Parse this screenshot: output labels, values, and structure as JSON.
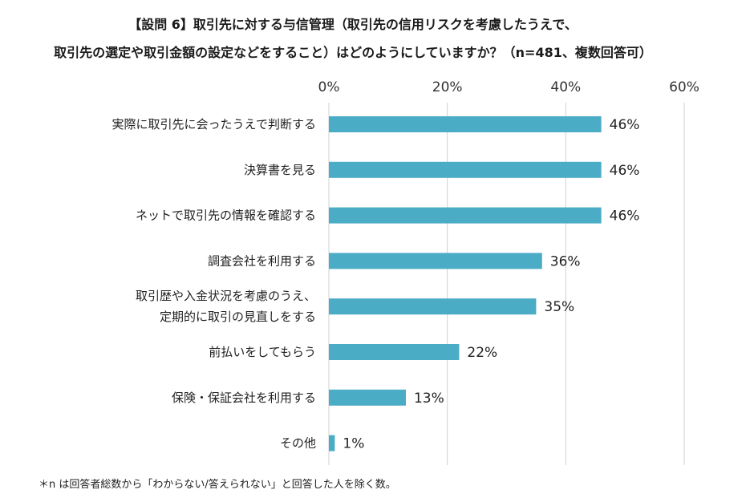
{
  "chart_data": {
    "type": "bar",
    "orientation": "horizontal",
    "title_lines": [
      "【設問 6】取引先に対する与信管理（取引先の信用リスクを考慮したうえで、",
      "取引先の選定や取引金額の設定などをすること）はどのようにしていますか？（n=481、複数回答可）"
    ],
    "categories": [
      [
        "実際に取引先に会ったうえで判断する"
      ],
      [
        "決算書を見る"
      ],
      [
        "ネットで取引先の情報を確認する"
      ],
      [
        "調査会社を利用する"
      ],
      [
        "取引歴や入金状況を考慮のうえ、",
        "定期的に取引の見直しをする"
      ],
      [
        "前払いをしてもらう"
      ],
      [
        "保険・保証会社を利用する"
      ],
      [
        "その他"
      ]
    ],
    "values": [
      46,
      46,
      46,
      36,
      35,
      22,
      13,
      1
    ],
    "value_labels": [
      "46%",
      "46%",
      "46%",
      "36%",
      "35%",
      "22%",
      "13%",
      "1%"
    ],
    "x_ticks": [
      0,
      20,
      40,
      60
    ],
    "x_tick_labels": [
      "0%",
      "20%",
      "40%",
      "60%"
    ],
    "xlim": [
      0,
      60
    ],
    "grid": true,
    "bar_color": "#4bacc6",
    "footnote": "＊n は回答者総数から「わからない/答えられない」と回答した人を除く数。"
  }
}
